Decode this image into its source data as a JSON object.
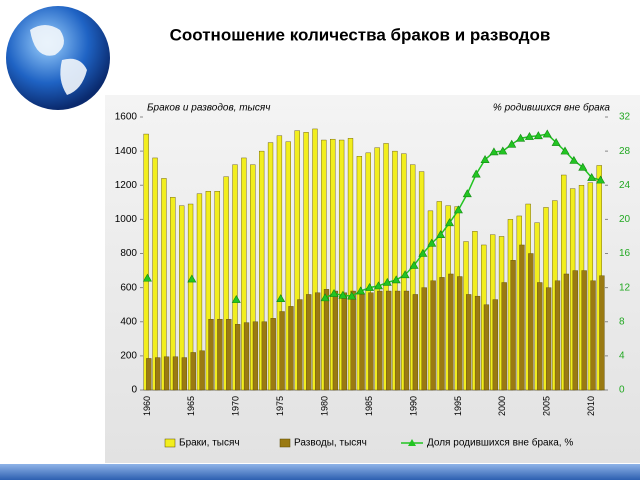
{
  "slide_title": "Соотношение количества браков и разводов",
  "chart_data": {
    "type": "bar-line",
    "y_label": "Браков и разводов, тысяч",
    "y2_label": "% родившихся вне брака",
    "categories": [
      "1960",
      null,
      null,
      null,
      null,
      "1965",
      null,
      null,
      null,
      null,
      "1970",
      null,
      null,
      null,
      null,
      "1975",
      null,
      null,
      null,
      null,
      "1980",
      null,
      null,
      null,
      null,
      "1985",
      null,
      null,
      null,
      null,
      "1990",
      null,
      null,
      null,
      null,
      "1995",
      null,
      null,
      null,
      null,
      "2000",
      null,
      null,
      null,
      null,
      "2005",
      null,
      null,
      null,
      null,
      "2010",
      null
    ],
    "series": [
      {
        "name": "Браки, тысяч",
        "color": "#f2ee1e",
        "kind": "bar",
        "values": [
          1500,
          1360,
          1240,
          1130,
          1080,
          1090,
          1150,
          1165,
          1165,
          1250,
          1320,
          1360,
          1320,
          1400,
          1450,
          1490,
          1455,
          1520,
          1510,
          1530,
          1465,
          1470,
          1465,
          1475,
          1370,
          1390,
          1420,
          1445,
          1400,
          1385,
          1320,
          1280,
          1050,
          1105,
          1080,
          1075,
          870,
          930,
          850,
          910,
          900,
          1000,
          1020,
          1090,
          980,
          1070,
          1110,
          1260,
          1180,
          1200,
          1215,
          1316
        ]
      },
      {
        "name": "Разводы, тысяч",
        "color": "#9a7a12",
        "kind": "bar",
        "values": [
          185,
          190,
          195,
          195,
          190,
          220,
          230,
          415,
          415,
          415,
          385,
          395,
          400,
          400,
          420,
          460,
          490,
          530,
          560,
          570,
          590,
          580,
          570,
          580,
          560,
          570,
          580,
          580,
          580,
          580,
          560,
          600,
          640,
          660,
          680,
          665,
          560,
          550,
          500,
          530,
          630,
          760,
          850,
          800,
          630,
          600,
          640,
          680,
          700,
          700,
          640,
          670
        ]
      },
      {
        "name": "Доля родившихся вне брака, %",
        "color": "#22c422",
        "kind": "line",
        "axis": "y2",
        "values": [
          13.1,
          null,
          null,
          null,
          null,
          13.0,
          null,
          null,
          null,
          null,
          10.6,
          null,
          null,
          null,
          null,
          10.7,
          null,
          null,
          null,
          null,
          10.8,
          11.3,
          11.1,
          11.0,
          11.6,
          12.0,
          12.2,
          12.6,
          12.9,
          13.5,
          14.6,
          16.0,
          17.2,
          18.2,
          19.6,
          21.1,
          23.0,
          25.3,
          27.0,
          27.9,
          28.0,
          28.8,
          29.5,
          29.7,
          29.8,
          30.0,
          29.0,
          28.0,
          26.9,
          26.1,
          24.9,
          24.6
        ]
      }
    ],
    "ylim": [
      0,
      1600
    ],
    "yticks": [
      0,
      200,
      400,
      600,
      800,
      1000,
      1200,
      1400,
      1600
    ],
    "y2lim": [
      0,
      32
    ],
    "y2ticks": [
      0,
      4,
      8,
      12,
      16,
      20,
      24,
      28,
      32
    ],
    "legend": "bottom"
  }
}
